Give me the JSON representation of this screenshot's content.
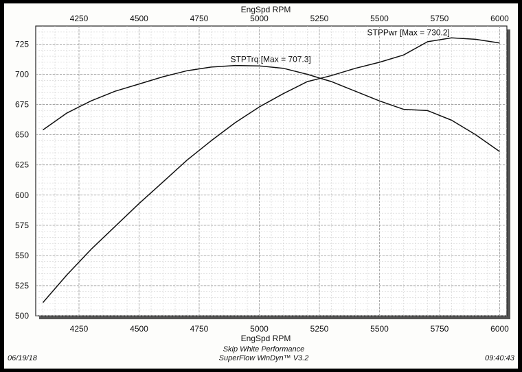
{
  "chart_data": {
    "type": "line",
    "xlabel_top": "EngSpd RPM",
    "xlabel_bottom": "EngSpd RPM",
    "xlim": [
      4070,
      6030
    ],
    "ylim": [
      500,
      740
    ],
    "x_ticks": [
      4250,
      4500,
      4750,
      5000,
      5250,
      5500,
      5750,
      6000
    ],
    "y_ticks": [
      500,
      525,
      550,
      575,
      600,
      625,
      650,
      675,
      700,
      725
    ],
    "grid": true,
    "x": [
      4100,
      4200,
      4300,
      4400,
      4500,
      4600,
      4700,
      4800,
      4900,
      5000,
      5100,
      5200,
      5300,
      5400,
      5500,
      5600,
      5700,
      5800,
      5900,
      6000
    ],
    "series": [
      {
        "name": "STPTrq",
        "label": "STPTrq [Max = 707.3]",
        "values": [
          654,
          668,
          678,
          686,
          692,
          698,
          703,
          706,
          707.3,
          707,
          705,
          700,
          694,
          686,
          678,
          671,
          670,
          662,
          650,
          636
        ]
      },
      {
        "name": "STPPwr",
        "label": "STPPwr [Max = 730.2]",
        "values": [
          511,
          534,
          555,
          574,
          593,
          611,
          629,
          645,
          660,
          673,
          684,
          694,
          699,
          705,
          710,
          716,
          727,
          730.2,
          729,
          726
        ]
      }
    ]
  },
  "footer": {
    "date": "06/19/18",
    "company": "Skip White Performance",
    "software": "SuperFlow WinDyn™ V3.2",
    "time": "09:40:43"
  }
}
